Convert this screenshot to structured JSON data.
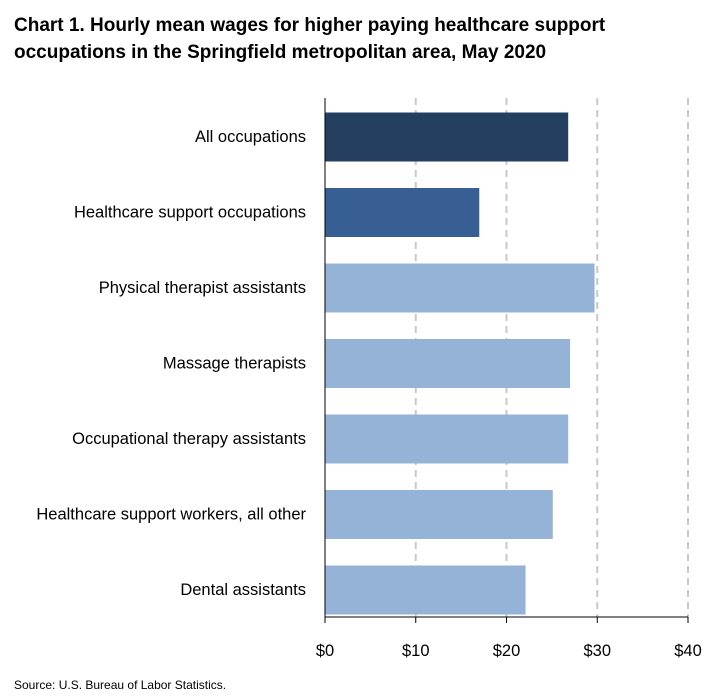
{
  "chart_data": {
    "type": "bar",
    "orientation": "horizontal",
    "title": "Chart 1. Hourly mean wages for higher paying healthcare support occupations in the Springfield metropolitan area, May 2020",
    "categories": [
      "All occupations",
      "Healthcare support occupations",
      "Physical therapist assistants",
      "Massage therapists",
      "Occupational therapy assistants",
      "Healthcare support workers, all other",
      "Dental assistants"
    ],
    "values": [
      26.8,
      17.0,
      29.7,
      27.0,
      26.8,
      25.1,
      22.1
    ],
    "bar_colors": [
      "#243f60",
      "#375f93",
      "#95b3d7",
      "#95b3d7",
      "#95b3d7",
      "#95b3d7",
      "#95b3d7"
    ],
    "xlim": [
      0,
      40
    ],
    "x_ticks": [
      0,
      10,
      20,
      30,
      40
    ],
    "x_tick_labels": [
      "$0",
      "$10",
      "$20",
      "$30",
      "$40"
    ],
    "grid": "vertical dashed",
    "xlabel": "",
    "ylabel": ""
  },
  "source": "Source: U.S. Bureau of Labor Statistics."
}
